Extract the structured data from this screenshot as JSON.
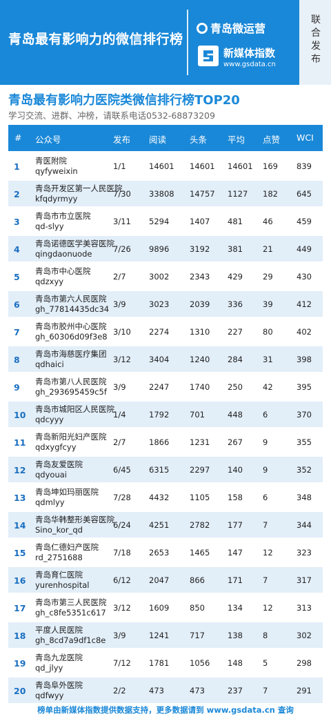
{
  "header": {
    "title": "青岛最有影响力的微信排行榜",
    "brand1": "青岛微运营",
    "brand2_name": "新媒体指数",
    "brand2_url": "www.gsdata.cn",
    "side_label": "联合发布"
  },
  "subtitle": "青岛最有影响力医院类微信排行榜TOP20",
  "contact": "学习交流、进群、冲榜，请联系电话0532-68873209",
  "columns": [
    "#",
    "公众号",
    "发布",
    "阅读",
    "头条",
    "平均",
    "点赞",
    "WCI"
  ],
  "rows": [
    {
      "rank": "1",
      "name": "青医附院",
      "account": "qyfyweixin",
      "publish": "1/1",
      "reads": "14601",
      "headline": "14601",
      "avg": "14601",
      "likes": "169",
      "wci": "839"
    },
    {
      "rank": "2",
      "name": "青岛开发区第一人民医院",
      "account": "kfqdyrmyy",
      "publish": "7/30",
      "reads": "33808",
      "headline": "14757",
      "avg": "1127",
      "likes": "182",
      "wci": "645"
    },
    {
      "rank": "3",
      "name": "青岛市市立医院",
      "account": "qd-slyy",
      "publish": "3/11",
      "reads": "5294",
      "headline": "1407",
      "avg": "481",
      "likes": "46",
      "wci": "459"
    },
    {
      "rank": "4",
      "name": "青岛诺德医学美容医院",
      "account": "qingdaonuode",
      "publish": "7/26",
      "reads": "9896",
      "headline": "3192",
      "avg": "381",
      "likes": "21",
      "wci": "449"
    },
    {
      "rank": "5",
      "name": "青岛市中心医院",
      "account": "qdzxyy",
      "publish": "2/7",
      "reads": "3002",
      "headline": "2343",
      "avg": "429",
      "likes": "29",
      "wci": "430"
    },
    {
      "rank": "6",
      "name": "青岛市第六人民医院",
      "account": "gh_77814435dc34",
      "publish": "3/9",
      "reads": "3023",
      "headline": "2039",
      "avg": "336",
      "likes": "39",
      "wci": "412"
    },
    {
      "rank": "7",
      "name": "青岛市胶州中心医院",
      "account": "gh_60306d09f3e8",
      "publish": "3/10",
      "reads": "2274",
      "headline": "1310",
      "avg": "227",
      "likes": "80",
      "wci": "402"
    },
    {
      "rank": "8",
      "name": "青岛市海慈医疗集团",
      "account": "qdhaici",
      "publish": "3/12",
      "reads": "3404",
      "headline": "1240",
      "avg": "284",
      "likes": "31",
      "wci": "398"
    },
    {
      "rank": "9",
      "name": "青岛市第八人民医院",
      "account": "gh_293695459c5f",
      "publish": "3/9",
      "reads": "2247",
      "headline": "1740",
      "avg": "250",
      "likes": "42",
      "wci": "395"
    },
    {
      "rank": "10",
      "name": "青岛市城阳区人民医院",
      "account": "qdcyyy",
      "publish": "1/4",
      "reads": "1792",
      "headline": "701",
      "avg": "448",
      "likes": "6",
      "wci": "370"
    },
    {
      "rank": "11",
      "name": "青岛新阳光妇产医院",
      "account": "qdxygfcyy",
      "publish": "2/7",
      "reads": "1866",
      "headline": "1231",
      "avg": "267",
      "likes": "9",
      "wci": "355"
    },
    {
      "rank": "12",
      "name": "青岛友爱医院",
      "account": "qdyouai",
      "publish": "6/45",
      "reads": "6315",
      "headline": "2297",
      "avg": "140",
      "likes": "9",
      "wci": "352"
    },
    {
      "rank": "13",
      "name": "青岛坤如玛丽医院",
      "account": "qdmlyy",
      "publish": "7/28",
      "reads": "4432",
      "headline": "1105",
      "avg": "158",
      "likes": "6",
      "wci": "348"
    },
    {
      "rank": "14",
      "name": "青岛华韩整形美容医院",
      "account": "Sino_kor_qd",
      "publish": "6/24",
      "reads": "4251",
      "headline": "2782",
      "avg": "177",
      "likes": "7",
      "wci": "344"
    },
    {
      "rank": "15",
      "name": "青岛仁德妇产医院",
      "account": "rd_2751688",
      "publish": "7/18",
      "reads": "2653",
      "headline": "1465",
      "avg": "147",
      "likes": "12",
      "wci": "323"
    },
    {
      "rank": "16",
      "name": "青岛育仁医院",
      "account": "yurenhospital",
      "publish": "6/12",
      "reads": "2047",
      "headline": "866",
      "avg": "171",
      "likes": "7",
      "wci": "317"
    },
    {
      "rank": "17",
      "name": "青岛市第三人民医院",
      "account": "gh_c8fe5351c617",
      "publish": "3/12",
      "reads": "1609",
      "headline": "850",
      "avg": "134",
      "likes": "12",
      "wci": "313"
    },
    {
      "rank": "18",
      "name": "平度人民医院",
      "account": "gh_8cd7a9df1c8e",
      "publish": "3/9",
      "reads": "1241",
      "headline": "717",
      "avg": "138",
      "likes": "8",
      "wci": "302"
    },
    {
      "rank": "19",
      "name": "青岛九龙医院",
      "account": "qd_jlyy",
      "publish": "7/12",
      "reads": "1781",
      "headline": "1056",
      "avg": "148",
      "likes": "5",
      "wci": "298"
    },
    {
      "rank": "20",
      "name": "青岛阜外医院",
      "account": "qdfwyy",
      "publish": "2/2",
      "reads": "473",
      "headline": "473",
      "avg": "237",
      "likes": "7",
      "wci": "291"
    }
  ],
  "footer": "榜单由新媒体指数提供数据支持，更多数据请到 www.gsdata.cn 查询",
  "colors": {
    "primary": "#1a88d8",
    "stripe": "#e2eef8",
    "side": "#e9f1f8"
  }
}
